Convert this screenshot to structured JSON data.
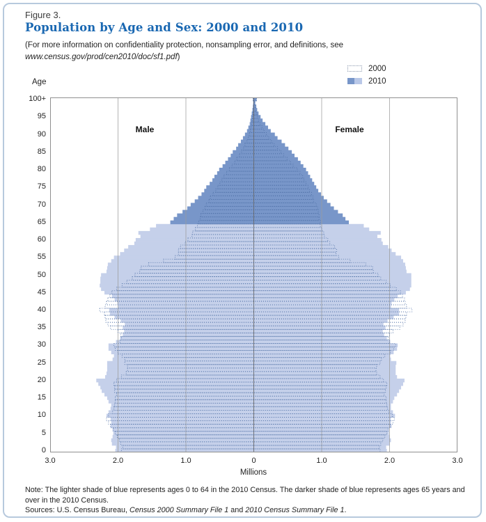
{
  "figure": {
    "label": "Figure 3.",
    "title": "Population by Age and Sex: 2000 and 2010",
    "subtitle_line1": "(For more information on confidentiality protection, nonsampling error, and definitions, see",
    "subtitle_url": "www.census.gov/prod/cen2010/doc/sf1.pdf",
    "subtitle_close": ")"
  },
  "legend": {
    "items": [
      {
        "label": "2000",
        "swatch": "dotted-outline"
      },
      {
        "label": "2010",
        "swatch": "split-blue"
      }
    ]
  },
  "axes": {
    "y_title": "Age",
    "y_ticks": [
      "100+",
      "95",
      "90",
      "85",
      "80",
      "75",
      "70",
      "65",
      "60",
      "55",
      "50",
      "45",
      "40",
      "35",
      "30",
      "25",
      "20",
      "15",
      "10",
      "5",
      "0"
    ],
    "x_ticks": [
      "3.0",
      "2.0",
      "1.0",
      "0",
      "1.0",
      "2.0",
      "3.0"
    ],
    "x_title": "Millions",
    "left_label": "Male",
    "right_label": "Female"
  },
  "note": "Note: The lighter shade of blue represents ages 0 to 64 in the 2010 Census. The darker shade of blue represents ages 65 years and over in the 2010 Census.",
  "sources": {
    "prefix": "Sources: U.S. Census Bureau, ",
    "italic1": "Census 2000 Summary File 1",
    "mid": " and ",
    "italic2": "2010 Census Summary File 1",
    "suffix": "."
  },
  "colors": {
    "title_blue": "#1a68b2",
    "bar_light_2010": "#c5d0ea",
    "bar_dark_2010": "#7896c9",
    "outline_2000": "#4e6fa5",
    "gridline": "#9b9b9b",
    "center_line": "#6a6a6a",
    "plot_border": "#8f8f8f",
    "frame_border": "#b7c9dd"
  },
  "chart_data": {
    "type": "bar",
    "subtype": "population-pyramid",
    "title": "Population by Age and Sex: 2000 and 2010",
    "unit": "millions of people per single year of age",
    "xlabel": "Millions",
    "ylabel": "Age",
    "x_max_each_side": 3.0,
    "age_labels_min": 0,
    "age_labels_max": "100+",
    "dark_shade_from_age": 65,
    "legend_position": "top-right",
    "grid": "vertical lines at 1.0 and 2.0 each side plus center axis",
    "ages_count": 101,
    "series": [
      {
        "name": "2010 male (left side)",
        "values": [
          2.04,
          2.03,
          2.09,
          2.1,
          2.08,
          2.07,
          2.08,
          2.11,
          2.1,
          2.11,
          2.17,
          2.14,
          2.11,
          2.1,
          2.14,
          2.16,
          2.2,
          2.24,
          2.26,
          2.29,
          2.32,
          2.19,
          2.17,
          2.16,
          2.16,
          2.16,
          2.08,
          2.06,
          2.1,
          2.14,
          2.14,
          2.03,
          1.97,
          1.93,
          1.91,
          1.93,
          1.9,
          1.96,
          2.05,
          2.12,
          2.13,
          2.0,
          2.01,
          2.05,
          2.09,
          2.2,
          2.25,
          2.27,
          2.26,
          2.26,
          2.25,
          2.17,
          2.16,
          2.15,
          2.1,
          2.06,
          1.97,
          1.91,
          1.85,
          1.76,
          1.74,
          1.67,
          1.7,
          1.53,
          1.44,
          1.23,
          1.18,
          1.13,
          1.05,
          0.98,
          0.93,
          0.87,
          0.82,
          0.77,
          0.73,
          0.7,
          0.65,
          0.61,
          0.58,
          0.54,
          0.51,
          0.46,
          0.42,
          0.38,
          0.34,
          0.31,
          0.26,
          0.23,
          0.19,
          0.16,
          0.13,
          0.1,
          0.08,
          0.06,
          0.05,
          0.04,
          0.03,
          0.02,
          0.013,
          0.008,
          0.012
        ]
      },
      {
        "name": "2010 female (right side)",
        "values": [
          1.96,
          1.95,
          2.0,
          2.02,
          2.0,
          1.99,
          1.99,
          2.03,
          2.02,
          2.02,
          2.08,
          2.05,
          2.02,
          2.02,
          2.05,
          2.07,
          2.11,
          2.14,
          2.17,
          2.2,
          2.22,
          2.11,
          2.09,
          2.09,
          2.09,
          2.1,
          2.02,
          2.01,
          2.06,
          2.11,
          2.12,
          2.01,
          1.96,
          1.92,
          1.9,
          1.94,
          1.91,
          1.97,
          2.06,
          2.14,
          2.14,
          2.02,
          2.03,
          2.07,
          2.12,
          2.24,
          2.3,
          2.32,
          2.32,
          2.32,
          2.32,
          2.25,
          2.24,
          2.23,
          2.2,
          2.17,
          2.09,
          2.03,
          1.98,
          1.9,
          1.88,
          1.82,
          1.87,
          1.7,
          1.62,
          1.4,
          1.35,
          1.31,
          1.24,
          1.18,
          1.13,
          1.08,
          1.03,
          0.99,
          0.95,
          0.92,
          0.89,
          0.86,
          0.83,
          0.8,
          0.77,
          0.73,
          0.69,
          0.65,
          0.6,
          0.56,
          0.51,
          0.46,
          0.41,
          0.35,
          0.31,
          0.25,
          0.21,
          0.17,
          0.13,
          0.1,
          0.07,
          0.05,
          0.037,
          0.022,
          0.042
        ]
      },
      {
        "name": "2000 male (left side, dotted outline)",
        "values": [
          1.95,
          1.93,
          1.96,
          1.98,
          2.01,
          2.04,
          2.07,
          2.11,
          2.14,
          2.17,
          2.14,
          2.08,
          2.06,
          2.05,
          2.04,
          2.04,
          2.02,
          2.05,
          2.05,
          2.06,
          2.02,
          1.95,
          1.88,
          1.86,
          1.86,
          1.9,
          1.9,
          1.94,
          2.0,
          2.04,
          2.06,
          1.97,
          1.95,
          1.96,
          2.0,
          2.11,
          2.15,
          2.18,
          2.19,
          2.2,
          2.27,
          2.19,
          2.17,
          2.15,
          2.12,
          2.09,
          2.02,
          1.94,
          1.87,
          1.79,
          1.75,
          1.68,
          1.66,
          1.55,
          1.33,
          1.16,
          1.11,
          1.11,
          1.08,
          1.01,
          0.97,
          0.91,
          0.9,
          0.86,
          0.83,
          0.81,
          0.79,
          0.78,
          0.75,
          0.72,
          0.7,
          0.66,
          0.64,
          0.6,
          0.56,
          0.53,
          0.5,
          0.47,
          0.44,
          0.4,
          0.36,
          0.32,
          0.28,
          0.25,
          0.21,
          0.18,
          0.15,
          0.13,
          0.1,
          0.08,
          0.065,
          0.05,
          0.04,
          0.03,
          0.02,
          0.016,
          0.011,
          0.007,
          0.005,
          0.003,
          0.01
        ]
      },
      {
        "name": "2000 female (right side, dotted outline)",
        "values": [
          1.86,
          1.85,
          1.87,
          1.9,
          1.93,
          1.96,
          1.98,
          2.01,
          2.05,
          2.07,
          2.04,
          1.99,
          1.97,
          1.96,
          1.95,
          1.95,
          1.92,
          1.94,
          1.95,
          1.96,
          1.91,
          1.86,
          1.81,
          1.8,
          1.81,
          1.86,
          1.88,
          1.93,
          2.01,
          2.06,
          2.09,
          2.0,
          1.98,
          2.0,
          2.05,
          2.15,
          2.2,
          2.23,
          2.24,
          2.25,
          2.33,
          2.25,
          2.23,
          2.22,
          2.19,
          2.16,
          2.1,
          2.01,
          1.95,
          1.87,
          1.83,
          1.76,
          1.75,
          1.65,
          1.42,
          1.25,
          1.21,
          1.22,
          1.19,
          1.12,
          1.09,
          1.04,
          1.03,
          1.0,
          0.98,
          0.98,
          0.96,
          0.96,
          0.95,
          0.94,
          0.92,
          0.88,
          0.87,
          0.85,
          0.82,
          0.8,
          0.77,
          0.74,
          0.72,
          0.68,
          0.64,
          0.58,
          0.54,
          0.49,
          0.44,
          0.4,
          0.35,
          0.3,
          0.26,
          0.22,
          0.185,
          0.15,
          0.12,
          0.09,
          0.07,
          0.054,
          0.039,
          0.028,
          0.019,
          0.012,
          0.04
        ]
      }
    ]
  }
}
